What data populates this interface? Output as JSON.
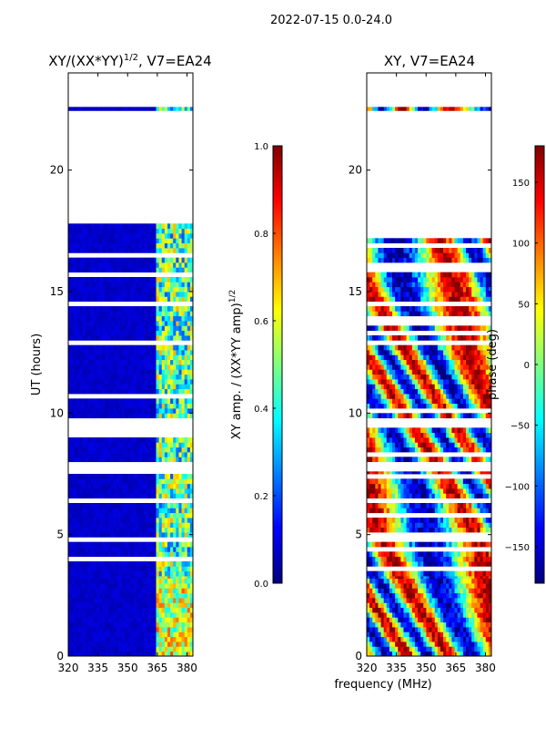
{
  "suptitle": "2022-07-15 0.0-24.0",
  "shared_xlabel": "frequency (MHz)",
  "colors": {
    "missing": "#ffffff",
    "jet": [
      "#00007f",
      "#0000ff",
      "#007fff",
      "#00ffff",
      "#7fff7f",
      "#ffff00",
      "#ff7f00",
      "#ff0000",
      "#7f0000"
    ]
  },
  "chart_data": [
    {
      "type": "heatmap",
      "name": "amplitude",
      "title_main": "XY/(XX*YY)",
      "title_sup": "1/2",
      "title_tail": ", V7=EA24",
      "xlabel": "",
      "ylabel": "UT (hours)",
      "xlim": [
        320,
        383
      ],
      "ylim": [
        0,
        24
      ],
      "xticks": [
        320,
        335,
        350,
        365,
        380
      ],
      "yticks": [
        0,
        5,
        10,
        15,
        20
      ],
      "colorbar": {
        "label_main": "XY amp. / (XX*YY amp)",
        "label_sup": "1/2",
        "range": [
          0.0,
          1.0
        ],
        "ticks": [
          "0.0",
          "0.2",
          "0.4",
          "0.6",
          "0.8",
          "1.0"
        ],
        "tick_values": [
          0.0,
          0.2,
          0.4,
          0.6,
          0.8,
          1.0
        ]
      },
      "data_blocks_hours": [
        [
          0.0,
          3.3
        ],
        [
          3.3,
          7.6
        ],
        [
          8.0,
          9.4
        ],
        [
          9.8,
          17.8
        ],
        [
          22.45,
          22.6
        ]
      ],
      "signal_band_mhz": [
        363,
        383
      ],
      "background_level": 0.05,
      "band_level": 0.45
    },
    {
      "type": "heatmap",
      "name": "phase",
      "title_main": "XY, V7=EA24",
      "xlabel": "",
      "ylabel": "",
      "xlim": [
        320,
        383
      ],
      "ylim": [
        0,
        24
      ],
      "xticks": [
        320,
        335,
        350,
        365,
        380
      ],
      "yticks": [
        0,
        5,
        10,
        15,
        20
      ],
      "colorbar": {
        "label_main": "phase (deg)",
        "range": [
          -180,
          180
        ],
        "ticks": [
          "150",
          "100",
          "50",
          "0",
          "−50",
          "−100",
          "−150"
        ],
        "tick_values": [
          150,
          100,
          50,
          0,
          -50,
          -100,
          -150
        ]
      },
      "data_blocks_hours": [
        [
          0.0,
          3.3
        ],
        [
          3.3,
          7.6
        ],
        [
          8.0,
          9.4
        ],
        [
          9.8,
          17.8
        ],
        [
          22.45,
          22.6
        ]
      ]
    }
  ]
}
